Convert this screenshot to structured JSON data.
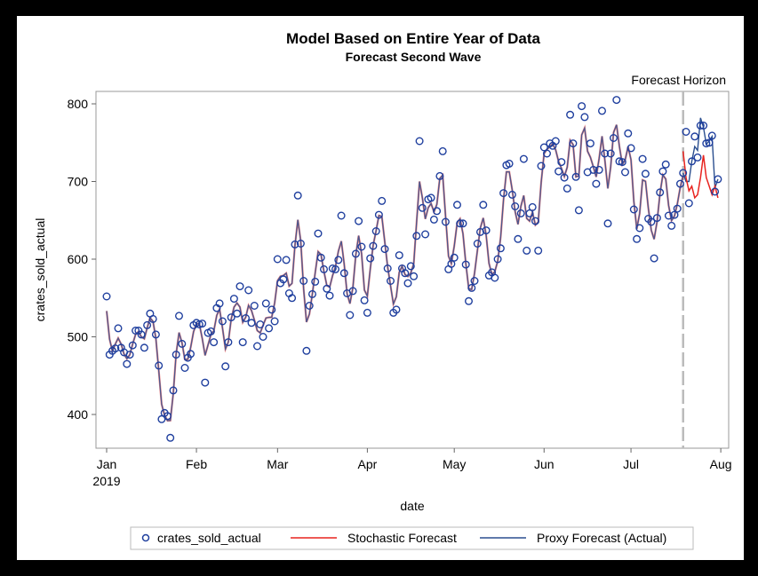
{
  "chart_data": {
    "type": "line",
    "title": "Model Based on Entire Year of Data",
    "subtitle": "Forecast Second Wave",
    "xlabel": "date",
    "ylabel": "crates_sold_actual",
    "ylim": [
      360,
      810
    ],
    "yticks": [
      400,
      500,
      600,
      700,
      800
    ],
    "xticks": [
      "Jan",
      "Feb",
      "Mar",
      "Apr",
      "May",
      "Jun",
      "Jul",
      "Aug"
    ],
    "xtick_year": "2019",
    "annotation": "Forecast Horizon",
    "forecast_horizon_after": "Jul 19",
    "legend_position": "bottom",
    "legend": [
      "crates_sold_actual",
      "Stochastic Forecast",
      "Proxy Forecast (Actual)"
    ],
    "colors": {
      "actual": "#1f3f9e",
      "stochastic": "#e8231f",
      "proxy": "#2b4f8f",
      "horizon": "#bbbbbb"
    },
    "actual_daily_by_month": {
      "Jan": [
        552,
        477,
        482,
        485,
        511,
        486,
        480,
        465,
        477,
        489,
        508,
        508,
        503,
        486,
        515,
        530,
        523,
        503,
        463,
        394,
        402,
        398,
        370,
        431,
        477,
        527,
        491,
        460,
        473,
        478,
        515
      ],
      "Feb": [
        518,
        516,
        517,
        441,
        505,
        507,
        493,
        537,
        543,
        520,
        462,
        493,
        525,
        549,
        530,
        565,
        493,
        524,
        560,
        518,
        540,
        488,
        516,
        500,
        543,
        511,
        535,
        520
      ],
      "Mar": [
        600,
        569,
        574,
        599,
        556,
        550,
        619,
        682,
        620,
        572,
        482,
        540,
        555,
        571,
        633,
        602,
        587,
        562,
        553,
        588,
        587,
        599,
        656,
        582,
        556,
        528,
        559,
        607,
        649,
        616,
        547
      ],
      "Apr": [
        531,
        601,
        617,
        636,
        657,
        675,
        613,
        588,
        572,
        531,
        535,
        605,
        588,
        582,
        569,
        591,
        578,
        630,
        752,
        666,
        632,
        677,
        679,
        651,
        662,
        707,
        739,
        648,
        587,
        594
      ],
      "May": [
        602,
        670,
        646,
        646,
        593,
        546,
        563,
        572,
        620,
        635,
        670,
        637,
        579,
        583,
        576,
        600,
        614,
        685,
        721,
        723,
        683,
        668,
        626,
        659,
        729,
        611,
        659,
        667,
        649,
        611,
        720
      ],
      "Jun": [
        744,
        736,
        749,
        746,
        752,
        713,
        725,
        705,
        691,
        786,
        749,
        706,
        663,
        797,
        783,
        712,
        749,
        715,
        697,
        715,
        791,
        736,
        646,
        736,
        756,
        805,
        726,
        725,
        712,
        762
      ],
      "Jul": [
        743,
        664,
        626,
        640,
        729,
        710,
        652,
        648,
        601,
        653,
        686,
        713,
        722,
        656,
        643,
        657,
        665,
        697,
        711,
        764,
        672,
        726,
        758,
        731,
        772,
        772,
        749,
        750,
        759,
        687,
        703
      ]
    },
    "forecast_jul_19_to_31": {
      "stochastic": [
        739,
        705,
        688,
        694,
        679,
        683,
        705,
        734,
        705,
        694,
        683,
        694,
        679
      ],
      "proxy": [
        711,
        700,
        700,
        726,
        745,
        740,
        782,
        770,
        748,
        752,
        758,
        692,
        703
      ]
    }
  }
}
